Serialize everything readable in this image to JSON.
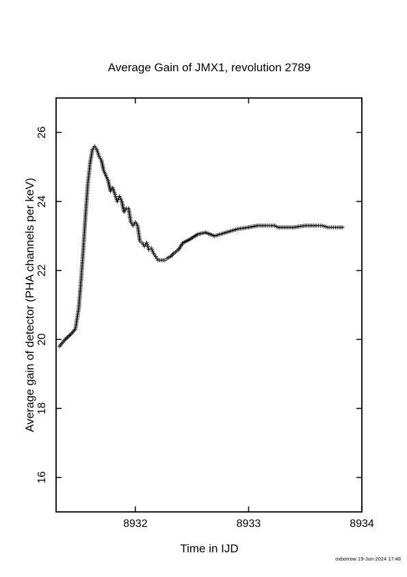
{
  "chart_data": {
    "type": "scatter",
    "title": "Average Gain of JMX1, revolution 2789",
    "xlabel": "Time in IJD",
    "ylabel": "Average gain of detector (PHA channels per keV)",
    "xlim": [
      8931.3,
      8934.0
    ],
    "ylim": [
      15.0,
      27.0
    ],
    "xticks": [
      8932,
      8933,
      8934
    ],
    "xtick_labels": [
      "8932",
      "8933",
      "8934"
    ],
    "yticks": [
      16,
      18,
      20,
      22,
      24,
      26
    ],
    "ytick_labels": [
      "16",
      "18",
      "20",
      "22",
      "24",
      "26"
    ],
    "grid": false,
    "legend": "none",
    "marker": "plus",
    "color": "#000000",
    "series": [
      {
        "x": [
          8931.33,
          8931.38,
          8931.43,
          8931.47,
          8931.5,
          8931.52,
          8931.54,
          8931.56,
          8931.58,
          8931.6,
          8931.62,
          8931.64,
          8931.66,
          8931.68,
          8931.7,
          8931.72,
          8931.74,
          8931.76,
          8931.78,
          8931.8,
          8931.82,
          8931.84,
          8931.86,
          8931.88,
          8931.9,
          8931.92,
          8931.94,
          8931.96,
          8931.98,
          8932.0,
          8932.02,
          8932.04,
          8932.06,
          8932.08,
          8932.1,
          8932.12,
          8932.14,
          8932.16,
          8932.18,
          8932.2,
          8932.23,
          8932.26,
          8932.28,
          8932.31,
          8932.34,
          8932.38,
          8932.42,
          8932.48,
          8932.55,
          8932.62,
          8932.7,
          8932.8,
          8932.9,
          8933.0,
          8933.08,
          8933.15,
          8933.2,
          8933.23,
          8933.26,
          8933.3,
          8933.4,
          8933.5,
          8933.6,
          8933.65,
          8933.7,
          8933.75,
          8933.8,
          8933.83
        ],
        "y": [
          19.8,
          20.0,
          20.15,
          20.3,
          20.9,
          21.7,
          22.6,
          23.6,
          24.5,
          25.1,
          25.5,
          25.6,
          25.5,
          25.3,
          25.2,
          24.9,
          24.75,
          24.6,
          24.3,
          24.4,
          24.2,
          24.0,
          24.15,
          24.0,
          23.7,
          23.8,
          23.8,
          23.4,
          23.3,
          23.4,
          23.3,
          22.85,
          22.8,
          22.7,
          22.8,
          22.6,
          22.65,
          22.5,
          22.4,
          22.3,
          22.3,
          22.3,
          22.35,
          22.4,
          22.5,
          22.6,
          22.8,
          22.9,
          23.05,
          23.1,
          23.0,
          23.1,
          23.2,
          23.25,
          23.3,
          23.3,
          23.3,
          23.3,
          23.25,
          23.25,
          23.25,
          23.3,
          23.3,
          23.3,
          23.25,
          23.25,
          23.25,
          23.25
        ]
      }
    ]
  },
  "footer": {
    "stamp": "oxborrow 19-Jun-2024 17:48"
  }
}
